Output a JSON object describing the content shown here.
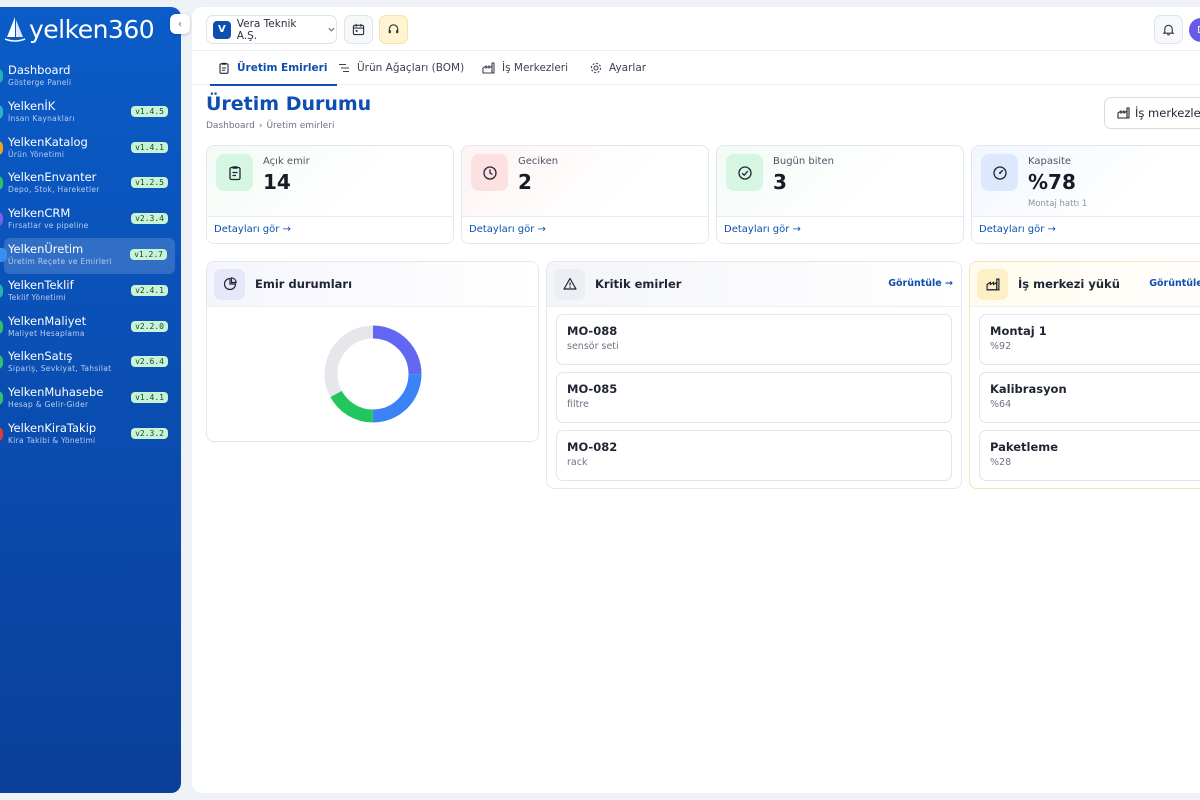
{
  "sidebar": {
    "logo_text": "yelken360",
    "collapse_label": "‹",
    "items": [
      {
        "title": "Dashboard",
        "sub": "Gösterge Paneli",
        "version": "",
        "color": "#1fb8a7"
      },
      {
        "title": "YelkenİK",
        "sub": "İnsan Kaynakları",
        "version": "v1.4.5",
        "color": "#2ab6c4"
      },
      {
        "title": "YelkenKatalog",
        "sub": "Ürün Yönetimi",
        "version": "v1.4.1",
        "color": "#f2a316"
      },
      {
        "title": "YelkenEnvanter",
        "sub": "Depo, Stok, Hareketler",
        "version": "v1.2.5",
        "color": "#2fc26b"
      },
      {
        "title": "YelkenCRM",
        "sub": "Fırsatlar ve pipeline",
        "version": "v2.3.4",
        "color": "#7a62e8"
      },
      {
        "title": "YelkenÜretim",
        "sub": "Üretim Reçete ve Emirleri",
        "version": "v1.2.7",
        "color": "#3a8ef0"
      },
      {
        "title": "YelkenTeklif",
        "sub": "Teklif Yönetimi",
        "version": "v2.4.1",
        "color": "#1fb8a7"
      },
      {
        "title": "YelkenMaliyet",
        "sub": "Maliyet Hesaplama",
        "version": "v2.2.0",
        "color": "#2fc26b"
      },
      {
        "title": "YelkenSatış",
        "sub": "Sipariş, Sevkiyat, Tahsilat",
        "version": "v2.6.4",
        "color": "#2fc26b"
      },
      {
        "title": "YelkenMuhasebe",
        "sub": "Hesap & Gelir-Gider",
        "version": "v1.4.1",
        "color": "#2fc26b"
      },
      {
        "title": "YelkenKiraTakip",
        "sub": "Kira Takibi & Yönetimi",
        "version": "v2.3.2",
        "color": "#e33b3b"
      }
    ]
  },
  "topbar": {
    "company_initial": "V",
    "company_name": "Vera Teknik A.Ş.",
    "avatar_initial": "D"
  },
  "tabs": [
    {
      "label": "Üretim Emirleri",
      "icon": "clipboard-icon"
    },
    {
      "label": "Ürün Ağaçları (BOM)",
      "icon": "tree-list-icon"
    },
    {
      "label": "İş Merkezleri",
      "icon": "factory-icon"
    },
    {
      "label": "Ayarlar",
      "icon": "gear-icon"
    }
  ],
  "page": {
    "title": "Üretim Durumu",
    "breadcrumb": [
      "Dashboard",
      "Üretim emirleri"
    ],
    "work_centers_button": "İş merkezleri"
  },
  "kpis": [
    {
      "label": "Açık emir",
      "value": "14",
      "sub": "",
      "link": "Detayları gör →",
      "icon": "clipboard-icon",
      "accent": "#16a34a"
    },
    {
      "label": "Geciken",
      "value": "2",
      "sub": "",
      "link": "Detayları gör →",
      "icon": "clock-icon",
      "accent": "#dc2626"
    },
    {
      "label": "Bugün biten",
      "value": "3",
      "sub": "",
      "link": "Detayları gör →",
      "icon": "check-circle-icon",
      "accent": "#16a34a"
    },
    {
      "label": "Kapasite",
      "value": "%78",
      "sub": "Montaj hattı 1",
      "link": "Detayları gör →",
      "icon": "gauge-icon",
      "accent": "#2563eb"
    }
  ],
  "panels": {
    "status": {
      "title": "Emir durumları",
      "icon": "pie-chart-icon"
    },
    "critical": {
      "title": "Kritik emirler",
      "link": "Görüntüle →",
      "icon": "warning-icon",
      "rows": [
        {
          "title": "MO-088",
          "sub": "sensör seti"
        },
        {
          "title": "MO-085",
          "sub": "filtre"
        },
        {
          "title": "MO-082",
          "sub": "rack"
        }
      ]
    },
    "load": {
      "title": "İş merkezi yükü",
      "link": "Görüntüle →",
      "icon": "factory-icon",
      "rows": [
        {
          "title": "Montaj 1",
          "sub": "%92"
        },
        {
          "title": "Kalibrasyon",
          "sub": "%64"
        },
        {
          "title": "Paketleme",
          "sub": "%28"
        }
      ]
    }
  },
  "chart_data": {
    "type": "pie",
    "style": "donut",
    "series": [
      {
        "value": 0.25,
        "color": "#6366f1"
      },
      {
        "value": 0.25,
        "color": "#3b82f6"
      },
      {
        "value": 0.17,
        "color": "#22c55e"
      },
      {
        "value": 0.33,
        "color": "#e5e7eb"
      }
    ]
  }
}
